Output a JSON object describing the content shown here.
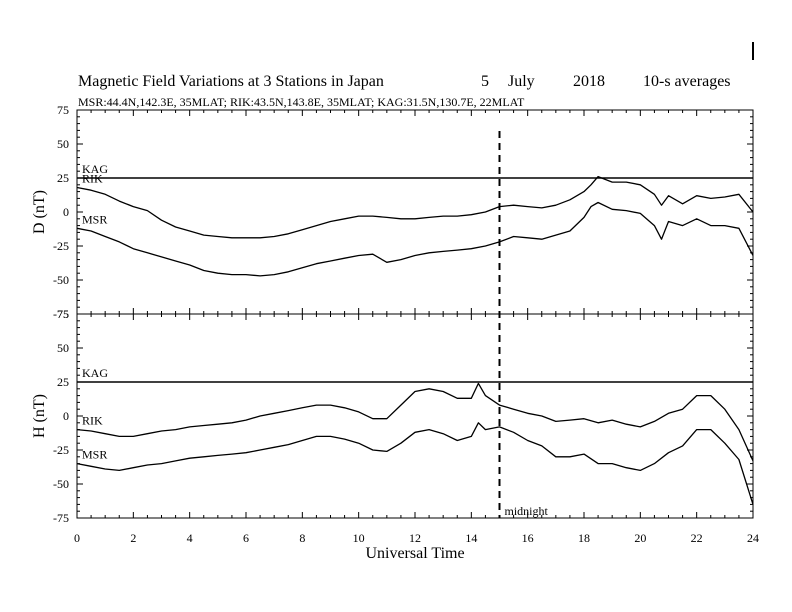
{
  "chart_data": {
    "type": "line",
    "title": {
      "main": "Magnetic Field Variations at 3 Stations in Japan",
      "day": "5",
      "month": "July",
      "year": "2018",
      "averaging": "10-s averages"
    },
    "subtitle": "MSR:44.4N,142.3E, 35MLAT;  RIK:43.5N,143.8E, 35MLAT;  KAG:31.5N,130.7E, 22MLAT",
    "xlabel": "Universal Time",
    "xlim": [
      0,
      24
    ],
    "x_ticks": [
      "0",
      "2",
      "4",
      "6",
      "8",
      "10",
      "12",
      "14",
      "16",
      "18",
      "20",
      "22",
      "24"
    ],
    "marker": {
      "x": 15,
      "label": "midnight",
      "style": "dashed"
    },
    "panels": [
      {
        "ylabel": "D (nT)",
        "ylim": [
          -75,
          75
        ],
        "y_ticks": [
          "75",
          "50",
          "25",
          "0",
          "-25",
          "-50",
          "-75"
        ],
        "series": [
          {
            "name": "KAG",
            "x": [
              0,
              24
            ],
            "values": [
              25,
              25
            ]
          },
          {
            "name": "RIK",
            "x": [
              0,
              0.5,
              1,
              1.5,
              2,
              2.5,
              3,
              3.5,
              4,
              4.5,
              5,
              5.5,
              6,
              6.5,
              7,
              7.5,
              8,
              8.5,
              9,
              9.5,
              10,
              10.5,
              11,
              11.5,
              12,
              12.5,
              13,
              13.5,
              14,
              14.5,
              15,
              15.5,
              16,
              16.5,
              17,
              17.5,
              18,
              18.25,
              18.5,
              19,
              19.5,
              20,
              20.5,
              20.75,
              21,
              21.5,
              22,
              22.5,
              23,
              23.5,
              24
            ],
            "values": [
              18,
              16,
              13,
              8,
              4,
              1,
              -6,
              -11,
              -14,
              -17,
              -18,
              -19,
              -19,
              -19,
              -18,
              -16,
              -13,
              -10,
              -7,
              -5,
              -3,
              -3,
              -4,
              -5,
              -5,
              -4,
              -3,
              -3,
              -2,
              0,
              4,
              5,
              4,
              3,
              5,
              9,
              15,
              20,
              26,
              22,
              22,
              20,
              13,
              5,
              12,
              6,
              12,
              10,
              11,
              13,
              0
            ]
          },
          {
            "name": "MSR",
            "x": [
              0,
              0.5,
              1,
              1.5,
              2,
              2.5,
              3,
              3.5,
              4,
              4.5,
              5,
              5.5,
              6,
              6.5,
              7,
              7.5,
              8,
              8.5,
              9,
              9.5,
              10,
              10.5,
              11,
              11.5,
              12,
              12.5,
              13,
              13.5,
              14,
              14.5,
              15,
              15.5,
              16,
              16.5,
              17,
              17.5,
              18,
              18.25,
              18.5,
              19,
              19.5,
              20,
              20.5,
              20.75,
              21,
              21.5,
              22,
              22.5,
              23,
              23.5,
              24
            ],
            "values": [
              -12,
              -14,
              -18,
              -22,
              -27,
              -30,
              -33,
              -36,
              -39,
              -43,
              -45,
              -46,
              -46,
              -47,
              -46,
              -44,
              -41,
              -38,
              -36,
              -34,
              -32,
              -31,
              -37,
              -35,
              -32,
              -30,
              -29,
              -28,
              -27,
              -25,
              -22,
              -18,
              -19,
              -20,
              -17,
              -14,
              -4,
              4,
              7,
              2,
              1,
              -1,
              -10,
              -20,
              -7,
              -10,
              -5,
              -10,
              -10,
              -12,
              -32
            ]
          }
        ]
      },
      {
        "ylabel": "H (nT)",
        "ylim": [
          -75,
          75
        ],
        "y_ticks": [
          "75",
          "50",
          "25",
          "0",
          "-25",
          "-50",
          "-75"
        ],
        "series": [
          {
            "name": "KAG",
            "x": [
              0,
              24
            ],
            "values": [
              25,
              25
            ]
          },
          {
            "name": "RIK",
            "x": [
              0,
              0.5,
              1,
              1.5,
              2,
              2.5,
              3,
              3.5,
              4,
              4.5,
              5,
              5.5,
              6,
              6.5,
              7,
              7.5,
              8,
              8.5,
              9,
              9.5,
              10,
              10.5,
              11,
              11.5,
              12,
              12.5,
              13,
              13.5,
              14,
              14.25,
              14.5,
              15,
              15.5,
              16,
              16.5,
              17,
              17.5,
              18,
              18.5,
              19,
              19.5,
              20,
              20.5,
              21,
              21.5,
              22,
              22.5,
              23,
              23.5,
              24
            ],
            "values": [
              -10,
              -11,
              -13,
              -15,
              -15,
              -13,
              -11,
              -10,
              -8,
              -7,
              -6,
              -5,
              -3,
              0,
              2,
              4,
              6,
              8,
              8,
              6,
              3,
              -2,
              -2,
              8,
              18,
              20,
              18,
              13,
              13,
              24,
              15,
              8,
              5,
              2,
              0,
              -4,
              -3,
              -2,
              -5,
              -3,
              -6,
              -8,
              -4,
              2,
              5,
              15,
              15,
              5,
              -10,
              -33
            ]
          },
          {
            "name": "MSR",
            "x": [
              0,
              0.5,
              1,
              1.5,
              2,
              2.5,
              3,
              3.5,
              4,
              4.5,
              5,
              5.5,
              6,
              6.5,
              7,
              7.5,
              8,
              8.5,
              9,
              9.5,
              10,
              10.5,
              11,
              11.5,
              12,
              12.5,
              13,
              13.5,
              14,
              14.25,
              14.5,
              15,
              15.5,
              16,
              16.5,
              17,
              17.5,
              18,
              18.5,
              19,
              19.5,
              20,
              20.5,
              21,
              21.5,
              22,
              22.5,
              23,
              23.5,
              24
            ],
            "values": [
              -35,
              -37,
              -39,
              -40,
              -38,
              -36,
              -35,
              -33,
              -31,
              -30,
              -29,
              -28,
              -27,
              -25,
              -23,
              -21,
              -18,
              -15,
              -15,
              -17,
              -20,
              -25,
              -26,
              -20,
              -12,
              -10,
              -13,
              -18,
              -15,
              -5,
              -10,
              -8,
              -12,
              -18,
              -22,
              -30,
              -30,
              -28,
              -35,
              -35,
              -38,
              -40,
              -35,
              -27,
              -22,
              -10,
              -10,
              -20,
              -32,
              -65
            ]
          }
        ]
      }
    ]
  }
}
